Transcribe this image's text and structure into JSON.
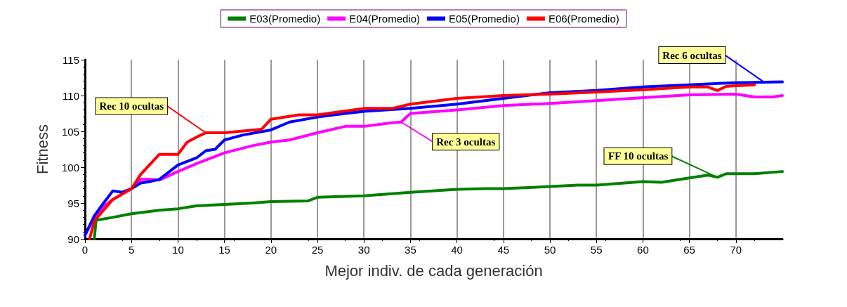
{
  "chart_data": {
    "type": "line",
    "xlabel": "Mejor indiv. de cada generación",
    "ylabel": "Fitness",
    "xlim": [
      0,
      75
    ],
    "xticks": [
      0,
      5,
      10,
      15,
      20,
      25,
      30,
      35,
      40,
      45,
      50,
      55,
      60,
      65,
      70
    ],
    "ylim": [
      90,
      115
    ],
    "yticks": [
      90,
      95,
      100,
      105,
      110,
      115
    ],
    "grid": "x",
    "legend": "top",
    "marker": "none",
    "line_style": "solid",
    "series": [
      {
        "name": "E03(Promedio)",
        "color": "#008000",
        "x": [
          1,
          1.2,
          3,
          5,
          8,
          10,
          12,
          15,
          18,
          20,
          24,
          25,
          30,
          33,
          35,
          40,
          43,
          45,
          50,
          53,
          55,
          58,
          60,
          62,
          65,
          67,
          68,
          69,
          72,
          75
        ],
        "values": [
          90,
          92.6,
          93,
          93.5,
          94,
          94.2,
          94.6,
          94.8,
          95,
          95.2,
          95.3,
          95.8,
          96,
          96.3,
          96.5,
          96.9,
          97,
          97,
          97.3,
          97.5,
          97.5,
          97.8,
          98,
          97.9,
          98.5,
          98.9,
          98.6,
          99.1,
          99.1,
          99.4
        ]
      },
      {
        "name": "E04(Promedio)",
        "color": "#ff00ff",
        "x": [
          0,
          1,
          2,
          3,
          5,
          6,
          7,
          8,
          10,
          12,
          15,
          18,
          20,
          22,
          25,
          28,
          30,
          33,
          34,
          35,
          40,
          45,
          50,
          55,
          60,
          65,
          70,
          72,
          74,
          75
        ],
        "values": [
          90.5,
          93,
          94.5,
          95.5,
          97,
          98.3,
          98.3,
          98.2,
          99.4,
          100.5,
          102,
          103,
          103.5,
          103.8,
          104.8,
          105.7,
          105.7,
          106.2,
          106.3,
          107.5,
          108,
          108.6,
          108.9,
          109.3,
          109.7,
          110.1,
          110.2,
          109.8,
          109.8,
          110
        ]
      },
      {
        "name": "E05(Promedio)",
        "color": "#0000ff",
        "x": [
          0,
          1,
          2,
          3,
          4,
          5,
          6,
          7,
          8,
          10,
          12,
          13,
          14,
          15,
          17,
          20,
          22,
          25,
          28,
          30,
          35,
          40,
          45,
          50,
          55,
          60,
          65,
          70,
          75
        ],
        "values": [
          90.5,
          93.2,
          95,
          96.7,
          96.5,
          97,
          97.8,
          98,
          98.3,
          100.3,
          101.3,
          102.3,
          102.5,
          103.8,
          104.5,
          105.2,
          106.3,
          107,
          107.5,
          107.8,
          108.2,
          108.8,
          109.6,
          110.4,
          110.7,
          111.2,
          111.5,
          111.8,
          111.9
        ]
      },
      {
        "name": "E06(Promedio)",
        "color": "#ff0000",
        "x": [
          0.5,
          1,
          2,
          3,
          5,
          6,
          8,
          10,
          11,
          12,
          13,
          15,
          19,
          20,
          23,
          25,
          30,
          33,
          35,
          40,
          45,
          50,
          55,
          60,
          65,
          67,
          68,
          69,
          72
        ],
        "values": [
          90,
          92.5,
          94,
          95.5,
          97,
          99,
          101.8,
          101.8,
          103.5,
          104.2,
          104.8,
          104.8,
          105.3,
          106.7,
          107.3,
          107.3,
          108.2,
          108.2,
          108.8,
          109.6,
          110,
          110.2,
          110.5,
          110.8,
          111.2,
          111.2,
          110.7,
          111.3,
          111.5
        ]
      }
    ],
    "annotations": [
      {
        "text": "Rec 10 ocultas",
        "x": 13,
        "y": 104.8
      },
      {
        "text": "Rec 3 ocultas",
        "x": 34,
        "y": 106.3
      },
      {
        "text": "Rec 6 ocultas",
        "x": 73,
        "y": 111.9
      },
      {
        "text": "FF 10 ocultas",
        "x": 68,
        "y": 98.6
      }
    ]
  }
}
